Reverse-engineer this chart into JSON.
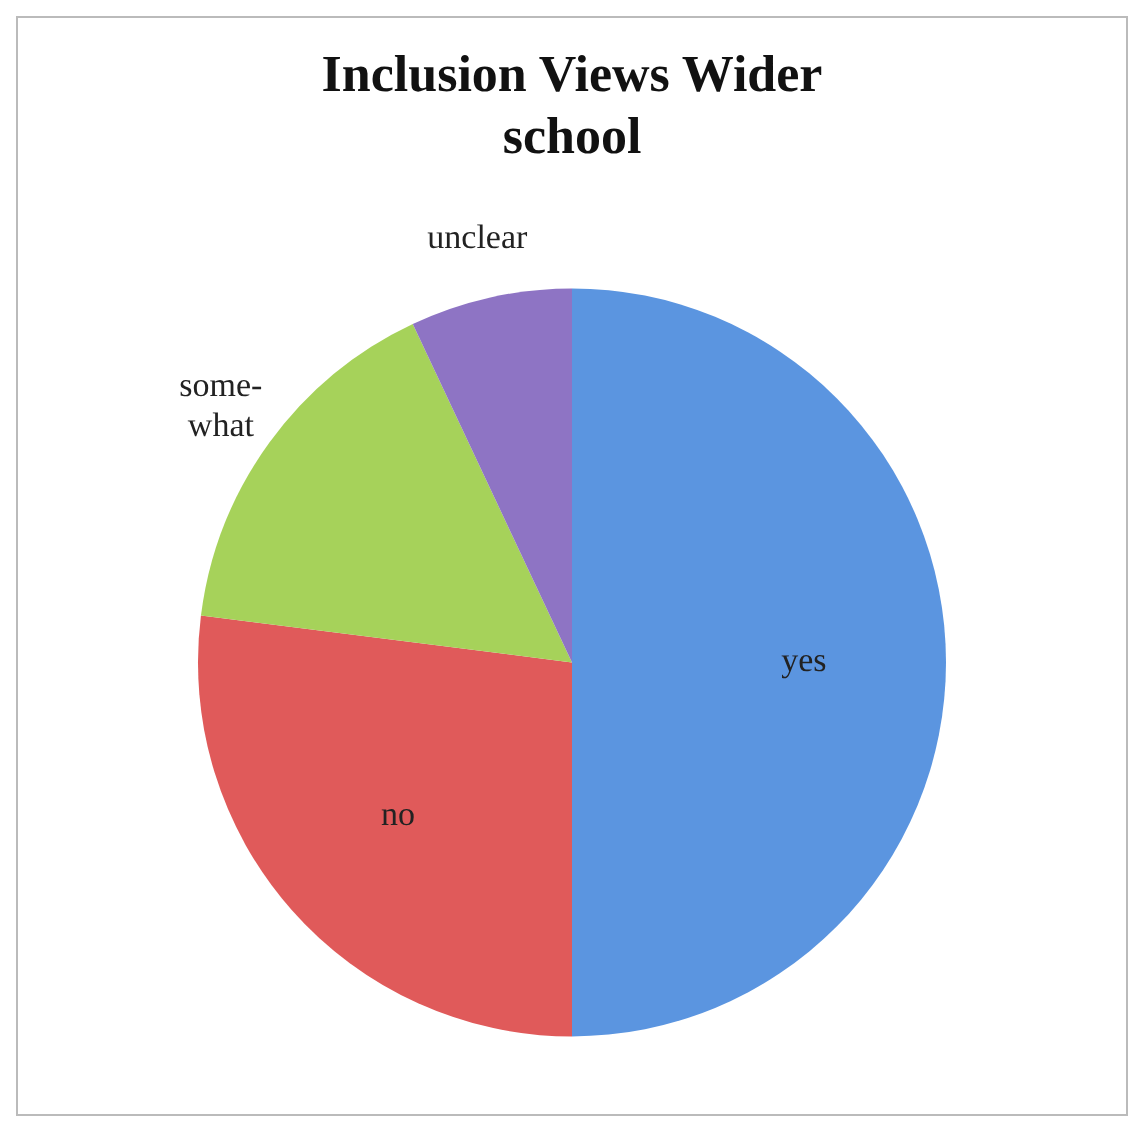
{
  "chart_data": {
    "type": "pie",
    "title": "Inclusion Views Wider school",
    "categories": [
      "yes",
      "no",
      "some-what",
      "unclear"
    ],
    "values": [
      50,
      27,
      16,
      7
    ],
    "colors": [
      "#5b95e0",
      "#e05a5a",
      "#a6d25a",
      "#8e74c4"
    ],
    "legend": false
  }
}
